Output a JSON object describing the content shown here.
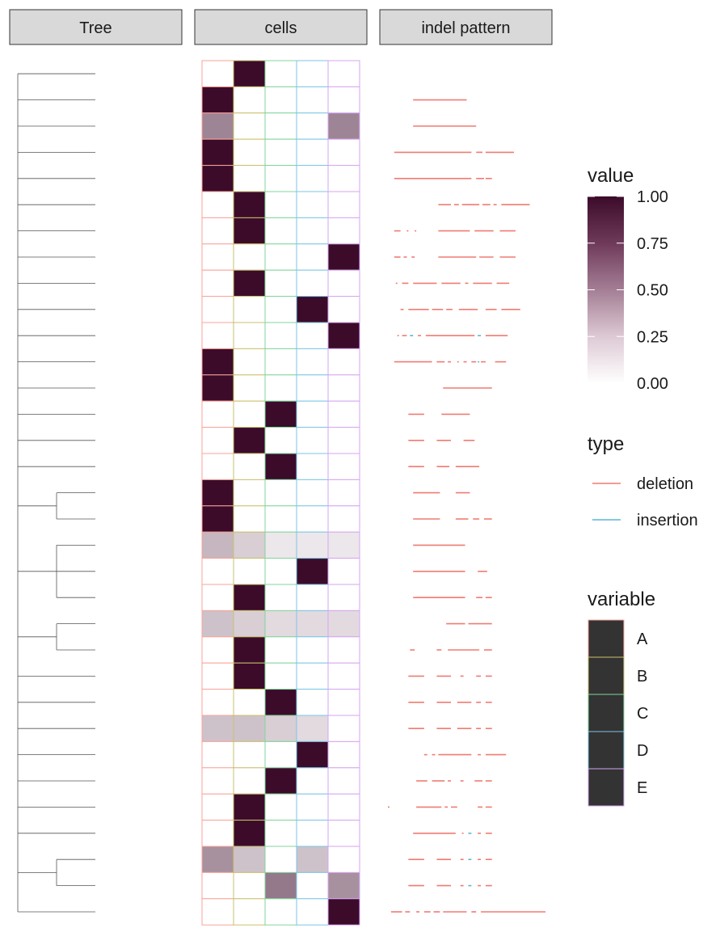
{
  "panels": {
    "tree": "Tree",
    "cells": "cells",
    "indel": "indel pattern"
  },
  "legends": {
    "value": {
      "title": "value",
      "ticks": [
        "1.00",
        "0.75",
        "0.50",
        "0.25",
        "0.00"
      ],
      "tick_values": [
        1.0,
        0.75,
        0.5,
        0.25,
        0.0
      ],
      "low_color": "#ffffff",
      "high_color": "#3c0b2a"
    },
    "type": {
      "title": "type",
      "items": [
        {
          "label": "deletion",
          "color": "#f07b72"
        },
        {
          "label": "insertion",
          "color": "#59b8d0"
        }
      ]
    },
    "variable": {
      "title": "variable",
      "items": [
        {
          "label": "A",
          "color": "#f8a39a"
        },
        {
          "label": "B",
          "color": "#c9c16d"
        },
        {
          "label": "C",
          "color": "#82d49e"
        },
        {
          "label": "D",
          "color": "#7cc6e4"
        },
        {
          "label": "E",
          "color": "#d5a6f0"
        }
      ]
    }
  },
  "chart_data": {
    "type": "heatmap",
    "variables": [
      "A",
      "B",
      "C",
      "D",
      "E"
    ],
    "value_range": [
      0,
      1
    ],
    "rows": [
      {
        "values": [
          0,
          1,
          0,
          0,
          0
        ],
        "indels": [],
        "split": null
      },
      {
        "values": [
          1,
          0,
          0,
          0,
          0
        ],
        "indels": [
          [
            0.16,
            0.5,
            "deletion"
          ]
        ]
      },
      {
        "values": [
          0.5,
          0,
          0,
          0,
          0.5
        ],
        "indels": [
          [
            0.16,
            0.56,
            "deletion"
          ]
        ]
      },
      {
        "values": [
          1,
          0,
          0,
          0,
          0
        ],
        "indels": [
          [
            0.04,
            0.53,
            "deletion"
          ],
          [
            0.56,
            0.6,
            "deletion"
          ],
          [
            0.62,
            0.8,
            "deletion"
          ]
        ]
      },
      {
        "values": [
          1,
          0,
          0,
          0,
          0
        ],
        "indels": [
          [
            0.04,
            0.53,
            "deletion"
          ],
          [
            0.56,
            0.61,
            "deletion"
          ],
          [
            0.62,
            0.66,
            "deletion"
          ]
        ]
      },
      {
        "values": [
          0,
          1,
          0,
          0,
          0
        ],
        "indels": [
          [
            0.32,
            0.4,
            "deletion"
          ],
          [
            0.42,
            0.45,
            "deletion"
          ],
          [
            0.47,
            0.58,
            "deletion"
          ],
          [
            0.6,
            0.65,
            "deletion"
          ],
          [
            0.67,
            0.69,
            "deletion"
          ],
          [
            0.72,
            0.9,
            "deletion"
          ]
        ]
      },
      {
        "values": [
          0,
          1,
          0,
          0,
          0
        ],
        "indels": [
          [
            0.04,
            0.08,
            "deletion"
          ],
          [
            0.12,
            0.13,
            "deletion"
          ],
          [
            0.17,
            0.18,
            "deletion"
          ],
          [
            0.32,
            0.52,
            "deletion"
          ],
          [
            0.55,
            0.67,
            "deletion"
          ],
          [
            0.71,
            0.81,
            "deletion"
          ]
        ]
      },
      {
        "values": [
          0,
          0,
          0,
          0,
          1
        ],
        "indels": [
          [
            0.04,
            0.08,
            "deletion"
          ],
          [
            0.1,
            0.12,
            "deletion"
          ],
          [
            0.15,
            0.17,
            "deletion"
          ],
          [
            0.32,
            0.56,
            "deletion"
          ],
          [
            0.58,
            0.67,
            "deletion"
          ],
          [
            0.71,
            0.81,
            "deletion"
          ]
        ]
      },
      {
        "values": [
          0,
          1,
          0,
          0,
          0
        ],
        "indels": [
          [
            0.05,
            0.06,
            "deletion"
          ],
          [
            0.09,
            0.13,
            "deletion"
          ],
          [
            0.16,
            0.31,
            "deletion"
          ],
          [
            0.34,
            0.46,
            "deletion"
          ],
          [
            0.49,
            0.51,
            "deletion"
          ],
          [
            0.54,
            0.66,
            "deletion"
          ],
          [
            0.69,
            0.77,
            "deletion"
          ]
        ]
      },
      {
        "values": [
          0,
          0,
          0,
          1,
          0
        ],
        "indels": [
          [
            0.08,
            0.1,
            "deletion"
          ],
          [
            0.13,
            0.26,
            "deletion"
          ],
          [
            0.28,
            0.35,
            "deletion"
          ],
          [
            0.37,
            0.41,
            "deletion"
          ],
          [
            0.45,
            0.57,
            "deletion"
          ],
          [
            0.62,
            0.69,
            "deletion"
          ],
          [
            0.72,
            0.84,
            "deletion"
          ]
        ]
      },
      {
        "values": [
          0,
          0,
          0,
          0,
          1
        ],
        "indels": [
          [
            0.06,
            0.07,
            "deletion"
          ],
          [
            0.09,
            0.12,
            "deletion"
          ],
          [
            0.14,
            0.16,
            "insertion"
          ],
          [
            0.19,
            0.21,
            "deletion"
          ],
          [
            0.24,
            0.55,
            "deletion"
          ],
          [
            0.57,
            0.59,
            "insertion"
          ],
          [
            0.62,
            0.76,
            "deletion"
          ]
        ]
      },
      {
        "values": [
          1,
          0,
          0,
          0,
          0
        ],
        "indels": [
          [
            0.04,
            0.28,
            "deletion"
          ],
          [
            0.31,
            0.36,
            "deletion"
          ],
          [
            0.38,
            0.4,
            "deletion"
          ],
          [
            0.44,
            0.45,
            "deletion"
          ],
          [
            0.48,
            0.5,
            "deletion"
          ],
          [
            0.53,
            0.56,
            "deletion"
          ],
          [
            0.57,
            0.58,
            "insertion"
          ],
          [
            0.59,
            0.62,
            "deletion"
          ],
          [
            0.68,
            0.75,
            "deletion"
          ]
        ]
      },
      {
        "values": [
          1,
          0,
          0,
          0,
          0
        ],
        "indels": [
          [
            0.35,
            0.66,
            "deletion"
          ]
        ]
      },
      {
        "values": [
          0,
          0,
          1,
          0,
          0
        ],
        "indels": [
          [
            0.13,
            0.23,
            "deletion"
          ],
          [
            0.34,
            0.52,
            "deletion"
          ]
        ]
      },
      {
        "values": [
          0,
          1,
          0,
          0,
          0
        ],
        "indels": [
          [
            0.13,
            0.23,
            "deletion"
          ],
          [
            0.31,
            0.4,
            "deletion"
          ],
          [
            0.48,
            0.55,
            "deletion"
          ]
        ]
      },
      {
        "values": [
          0,
          0,
          1,
          0,
          0
        ],
        "indels": [
          [
            0.13,
            0.23,
            "deletion"
          ],
          [
            0.31,
            0.39,
            "deletion"
          ],
          [
            0.43,
            0.58,
            "deletion"
          ]
        ]
      },
      {
        "values": [
          1,
          0,
          0,
          0,
          0
        ],
        "indels": [
          [
            0.16,
            0.33,
            "deletion"
          ],
          [
            0.43,
            0.52,
            "deletion"
          ]
        ]
      },
      {
        "values": [
          1,
          0,
          0,
          0,
          0
        ],
        "indels": [
          [
            0.16,
            0.33,
            "deletion"
          ],
          [
            0.43,
            0.51,
            "deletion"
          ],
          [
            0.54,
            0.58,
            "deletion"
          ],
          [
            0.61,
            0.66,
            "deletion"
          ]
        ]
      },
      {
        "values": [
          0.3,
          0.2,
          0.1,
          0.1,
          0.1
        ],
        "indels": [
          [
            0.16,
            0.49,
            "deletion"
          ]
        ]
      },
      {
        "values": [
          0,
          0,
          0,
          1,
          0
        ],
        "indels": [
          [
            0.16,
            0.49,
            "deletion"
          ],
          [
            0.57,
            0.63,
            "deletion"
          ]
        ]
      },
      {
        "values": [
          0,
          1,
          0,
          0,
          0
        ],
        "indels": [
          [
            0.16,
            0.49,
            "deletion"
          ],
          [
            0.56,
            0.6,
            "deletion"
          ],
          [
            0.62,
            0.66,
            "deletion"
          ]
        ]
      },
      {
        "values": [
          0.25,
          0.2,
          0.15,
          0.15,
          0.15
        ],
        "indels": [
          [
            0.37,
            0.49,
            "deletion"
          ],
          [
            0.51,
            0.66,
            "deletion"
          ]
        ]
      },
      {
        "values": [
          0,
          1,
          0,
          0,
          0
        ],
        "indels": [
          [
            0.14,
            0.17,
            "deletion"
          ],
          [
            0.31,
            0.34,
            "deletion"
          ],
          [
            0.38,
            0.58,
            "deletion"
          ],
          [
            0.61,
            0.66,
            "deletion"
          ]
        ]
      },
      {
        "values": [
          0,
          1,
          0,
          0,
          0
        ],
        "indels": [
          [
            0.13,
            0.23,
            "deletion"
          ],
          [
            0.31,
            0.4,
            "deletion"
          ],
          [
            0.46,
            0.48,
            "deletion"
          ],
          [
            0.56,
            0.59,
            "deletion"
          ],
          [
            0.62,
            0.66,
            "deletion"
          ]
        ]
      },
      {
        "values": [
          0,
          0,
          1,
          0,
          0
        ],
        "indels": [
          [
            0.13,
            0.23,
            "deletion"
          ],
          [
            0.31,
            0.4,
            "deletion"
          ],
          [
            0.44,
            0.53,
            "deletion"
          ],
          [
            0.56,
            0.59,
            "deletion"
          ],
          [
            0.62,
            0.66,
            "deletion"
          ]
        ]
      },
      {
        "values": [
          0.25,
          0.25,
          0.2,
          0.15,
          0
        ],
        "indels": [
          [
            0.13,
            0.23,
            "deletion"
          ],
          [
            0.31,
            0.4,
            "deletion"
          ],
          [
            0.44,
            0.53,
            "deletion"
          ],
          [
            0.56,
            0.59,
            "deletion"
          ],
          [
            0.62,
            0.66,
            "deletion"
          ]
        ]
      },
      {
        "values": [
          0,
          0,
          0,
          1,
          0
        ],
        "indels": [
          [
            0.23,
            0.25,
            "deletion"
          ],
          [
            0.28,
            0.3,
            "deletion"
          ],
          [
            0.32,
            0.53,
            "deletion"
          ],
          [
            0.57,
            0.59,
            "deletion"
          ],
          [
            0.62,
            0.75,
            "deletion"
          ]
        ]
      },
      {
        "values": [
          0,
          0,
          1,
          0,
          0
        ],
        "indels": [
          [
            0.18,
            0.25,
            "deletion"
          ],
          [
            0.28,
            0.36,
            "deletion"
          ],
          [
            0.38,
            0.4,
            "deletion"
          ],
          [
            0.46,
            0.48,
            "deletion"
          ],
          [
            0.55,
            0.6,
            "deletion"
          ],
          [
            0.62,
            0.66,
            "deletion"
          ]
        ]
      },
      {
        "values": [
          0,
          1,
          0,
          0,
          0
        ],
        "indels": [
          [
            0.0,
            0.01,
            "deletion"
          ],
          [
            0.18,
            0.34,
            "deletion"
          ],
          [
            0.36,
            0.38,
            "deletion"
          ],
          [
            0.4,
            0.44,
            "deletion"
          ],
          [
            0.57,
            0.6,
            "deletion"
          ],
          [
            0.62,
            0.66,
            "deletion"
          ]
        ]
      },
      {
        "values": [
          0,
          1,
          0,
          0,
          0
        ],
        "indels": [
          [
            0.16,
            0.43,
            "deletion"
          ],
          [
            0.47,
            0.48,
            "deletion"
          ],
          [
            0.51,
            0.53,
            "insertion"
          ],
          [
            0.57,
            0.59,
            "deletion"
          ],
          [
            0.62,
            0.66,
            "deletion"
          ]
        ]
      },
      {
        "values": [
          0.45,
          0.25,
          0,
          0.25,
          0
        ],
        "indels": [
          [
            0.13,
            0.23,
            "deletion"
          ],
          [
            0.31,
            0.4,
            "deletion"
          ],
          [
            0.46,
            0.48,
            "deletion"
          ],
          [
            0.51,
            0.53,
            "insertion"
          ],
          [
            0.57,
            0.59,
            "deletion"
          ],
          [
            0.62,
            0.66,
            "deletion"
          ]
        ]
      },
      {
        "values": [
          0,
          0,
          0.55,
          0,
          0.45
        ],
        "indels": [
          [
            0.13,
            0.23,
            "deletion"
          ],
          [
            0.31,
            0.4,
            "deletion"
          ],
          [
            0.46,
            0.48,
            "deletion"
          ],
          [
            0.51,
            0.53,
            "insertion"
          ],
          [
            0.57,
            0.59,
            "deletion"
          ],
          [
            0.62,
            0.66,
            "deletion"
          ]
        ]
      },
      {
        "values": [
          0,
          0,
          0,
          0,
          1
        ],
        "indels": [
          [
            0.02,
            0.09,
            "deletion"
          ],
          [
            0.11,
            0.14,
            "deletion"
          ],
          [
            0.18,
            0.2,
            "deletion"
          ],
          [
            0.23,
            0.27,
            "deletion"
          ],
          [
            0.29,
            0.33,
            "deletion"
          ],
          [
            0.35,
            0.5,
            "deletion"
          ],
          [
            0.53,
            0.56,
            "deletion"
          ],
          [
            0.59,
            1.0,
            "deletion"
          ]
        ]
      }
    ],
    "tree": {
      "clades": [
        {
          "rows": [
            16,
            17
          ]
        },
        {
          "rows": [
            18,
            19,
            20
          ]
        },
        {
          "rows": [
            21,
            22
          ]
        },
        {
          "rows": [
            30,
            31
          ]
        }
      ]
    }
  }
}
